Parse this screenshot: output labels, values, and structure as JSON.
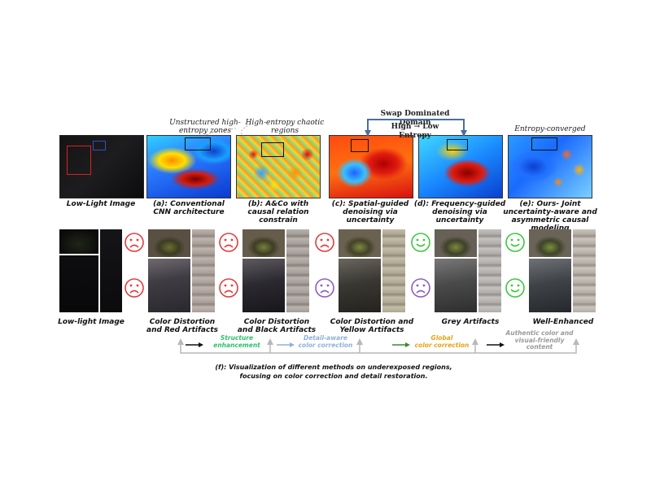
{
  "top_row": {
    "low_light_caption": "Low-Light Image",
    "captions": [
      "(a): Conventional\nCNN architecture",
      "(b): A&Co with\ncausal relation\nconstrain",
      "(c): Spatial-guided\ndenoising via\nuncertainty",
      "(d): Frequency-guided\ndenoising via\nuncertainty",
      "(e): Ours- Joint\nuncertainty-aware and\nasymmetric causal modeling"
    ],
    "annotations": {
      "unstructured": "Unstructured high-\nentropy zones",
      "chaotic": "High-entropy chaotic\nregions",
      "swap": "Swap Dominated Domain",
      "entropy_shift": "High → Low Entropy",
      "converged": "Entropy-converged"
    }
  },
  "bottom_row": {
    "low_light_caption": "Low-light Image",
    "captions": [
      "Color Distortion\nand Red Artifacts",
      "Color Distortion\nand Black Artifacts",
      "Color Distortion and\nYellow Artifacts",
      "Grey Artifacts",
      "Well-Enhanced"
    ],
    "face_colors": {
      "sad_red": "#e23b3b",
      "sad_purple": "#8a5cc7",
      "happy_green": "#3cc83c"
    }
  },
  "flow": {
    "steps": [
      {
        "label": "Structure\nenhancement",
        "color": "#2fbf6a"
      },
      {
        "label": "Detail-aware\ncolor correction",
        "color": "#8fb0dc"
      },
      {
        "label": "Global\ncolor correction",
        "color": "#e8a317"
      },
      {
        "label": "Authentic color and\nvisual-friendly\ncontent",
        "color": "#9a9a9a"
      }
    ]
  },
  "figure_caption": "(f): Visualization of different methods on underexposed regions,\nfocusing on color correction and detail restoration."
}
